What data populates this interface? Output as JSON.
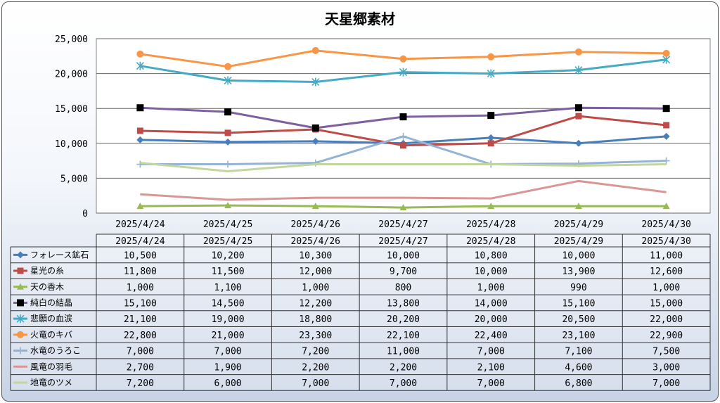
{
  "chart_data": {
    "type": "line",
    "title": "天星郷素材",
    "categories": [
      "2025/4/24",
      "2025/4/25",
      "2025/4/26",
      "2025/4/27",
      "2025/4/28",
      "2025/4/29",
      "2025/4/30"
    ],
    "ylim": [
      0,
      25000
    ],
    "y_ticks": [
      "0",
      "5,000",
      "10,000",
      "15,000",
      "20,000",
      "25,000"
    ],
    "y_tick_values": [
      0,
      5000,
      10000,
      15000,
      20000,
      25000
    ],
    "grid": true,
    "legend": "data-table",
    "series": [
      {
        "name": "フォレース鉱石",
        "color": "#4a7ebb",
        "marker": "diamond",
        "values": [
          10500,
          10200,
          10300,
          10000,
          10800,
          10000,
          11000
        ],
        "labels": [
          "10,500",
          "10,200",
          "10,300",
          "10,000",
          "10,800",
          "10,000",
          "11,000"
        ]
      },
      {
        "name": "星光の糸",
        "color": "#be4b48",
        "marker": "square",
        "values": [
          11800,
          11500,
          12000,
          9700,
          10000,
          13900,
          12600
        ],
        "labels": [
          "11,800",
          "11,500",
          "12,000",
          "9,700",
          "10,000",
          "13,900",
          "12,600"
        ]
      },
      {
        "name": "天の香木",
        "color": "#98b954",
        "marker": "triangle",
        "values": [
          1000,
          1100,
          1000,
          800,
          1000,
          990,
          1000
        ],
        "labels": [
          "1,000",
          "1,100",
          "1,000",
          "800",
          "1,000",
          "990",
          "1,000"
        ]
      },
      {
        "name": "純白の結晶",
        "color": "#7d60a0",
        "marker": "blacksquare",
        "values": [
          15100,
          14500,
          12200,
          13800,
          14000,
          15100,
          15000
        ],
        "labels": [
          "15,100",
          "14,500",
          "12,200",
          "13,800",
          "14,000",
          "15,100",
          "15,000"
        ]
      },
      {
        "name": "悲願の血涙",
        "color": "#46aac5",
        "marker": "star",
        "values": [
          21100,
          19000,
          18800,
          20200,
          20000,
          20500,
          22000
        ],
        "labels": [
          "21,100",
          "19,000",
          "18,800",
          "20,200",
          "20,000",
          "20,500",
          "22,000"
        ]
      },
      {
        "name": "火竜のキバ",
        "color": "#f79646",
        "marker": "circle",
        "values": [
          22800,
          21000,
          23300,
          22100,
          22400,
          23100,
          22900
        ],
        "labels": [
          "22,800",
          "21,000",
          "23,300",
          "22,100",
          "22,400",
          "23,100",
          "22,900"
        ]
      },
      {
        "name": "水竜のうろこ",
        "color": "#95b3d7",
        "marker": "plus",
        "values": [
          7000,
          7000,
          7200,
          11000,
          7000,
          7100,
          7500
        ],
        "labels": [
          "7,000",
          "7,000",
          "7,200",
          "11,000",
          "7,000",
          "7,100",
          "7,500"
        ]
      },
      {
        "name": "風竜の羽毛",
        "color": "#d99694",
        "marker": "none",
        "values": [
          2700,
          1900,
          2200,
          2200,
          2100,
          4600,
          3000
        ],
        "labels": [
          "2,700",
          "1,900",
          "2,200",
          "2,200",
          "2,100",
          "4,600",
          "3,000"
        ]
      },
      {
        "name": "地竜のツメ",
        "color": "#c3d69b",
        "marker": "none",
        "values": [
          7200,
          6000,
          7000,
          7000,
          7000,
          6800,
          7000
        ],
        "labels": [
          "7,200",
          "6,000",
          "7,000",
          "7,000",
          "7,000",
          "6,800",
          "7,000"
        ]
      }
    ]
  }
}
